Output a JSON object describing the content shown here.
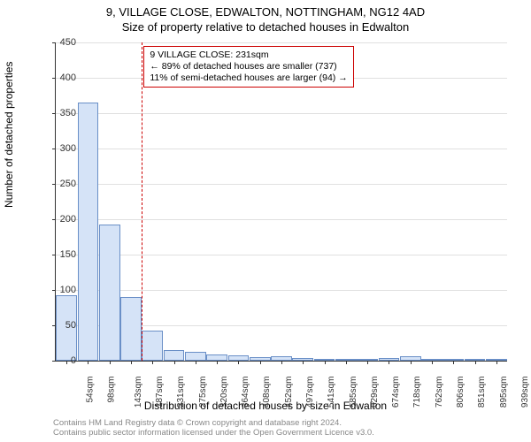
{
  "header": {
    "address": "9, VILLAGE CLOSE, EDWALTON, NOTTINGHAM, NG12 4AD",
    "subtitle": "Size of property relative to detached houses in Edwalton"
  },
  "chart": {
    "type": "histogram",
    "ylabel": "Number of detached properties",
    "xlabel": "Distribution of detached houses by size in Edwalton",
    "ylim": [
      0,
      450
    ],
    "ytick_step": 50,
    "yticks": [
      0,
      50,
      100,
      150,
      200,
      250,
      300,
      350,
      400,
      450
    ],
    "xtick_labels": [
      "54sqm",
      "98sqm",
      "143sqm",
      "187sqm",
      "231sqm",
      "275sqm",
      "320sqm",
      "364sqm",
      "408sqm",
      "452sqm",
      "497sqm",
      "541sqm",
      "585sqm",
      "629sqm",
      "674sqm",
      "718sqm",
      "762sqm",
      "806sqm",
      "851sqm",
      "895sqm",
      "939sqm"
    ],
    "values": [
      93,
      365,
      192,
      90,
      42,
      15,
      12,
      9,
      7,
      5,
      6,
      4,
      3,
      2,
      2,
      4,
      6,
      2,
      2,
      2,
      2
    ],
    "bar_fill": "#d5e3f7",
    "bar_stroke": "#6a8fc7",
    "grid_color": "#e0e0e0",
    "axis_color": "#333333",
    "background_color": "#ffffff",
    "reference_line_color": "#cc0000",
    "reference_bin_index": 4,
    "label_fontsize": 12,
    "tick_fontsize": 10
  },
  "annotation": {
    "line1": "9 VILLAGE CLOSE: 231sqm",
    "line2": "← 89% of detached houses are smaller (737)",
    "line3": "11% of semi-detached houses are larger (94) →",
    "border_color": "#cc0000"
  },
  "footer": {
    "line1": "Contains HM Land Registry data © Crown copyright and database right 2024.",
    "line2": "Contains public sector information licensed under the Open Government Licence v3.0."
  }
}
